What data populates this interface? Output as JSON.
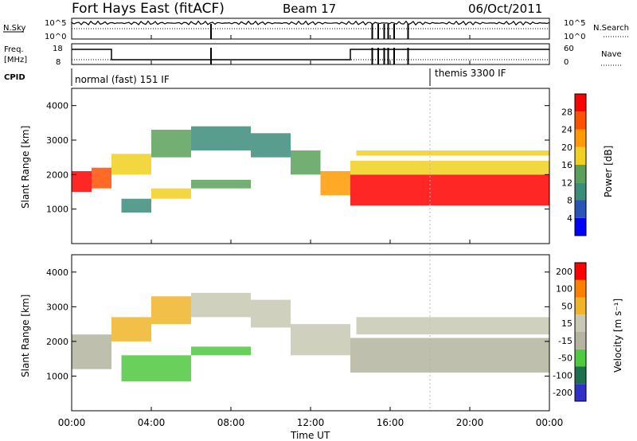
{
  "header": {
    "station": "Fort Hays East (fitACF)",
    "beam": "Beam 17",
    "date": "06/Oct/2011"
  },
  "top_panels": {
    "nsky_label": "N.Sky",
    "nsky_ticks": [
      "10^5",
      "10^0"
    ],
    "nsearch_label": "N.Search",
    "nsearch_ticks": [
      "10^5",
      "10^0"
    ],
    "freq_label": "Freq.",
    "freq_unit": "[MHz]",
    "freq_ticks": [
      "18",
      "8"
    ],
    "nave_label": "Nave",
    "nave_ticks": [
      "60",
      "0"
    ],
    "cpid_label": "CPID",
    "cpid_segments": [
      {
        "label": "normal (fast) 151 IF",
        "start_hour": 0
      },
      {
        "label": "themis 3300 IF",
        "start_hour": 18
      }
    ],
    "freq_steps": [
      {
        "hour_start": 0,
        "hour_end": 2,
        "level": "high"
      },
      {
        "hour_start": 2,
        "hour_end": 14,
        "level": "low"
      },
      {
        "hour_start": 14,
        "hour_end": 24,
        "level": "high"
      }
    ],
    "spike_hours": [
      7,
      15.1,
      15.4,
      15.7,
      15.9,
      16.2,
      16.9
    ]
  },
  "colors": {
    "power": [
      "#0000ff",
      "#2a55b8",
      "#3c8c7a",
      "#5aa05a",
      "#f0d020",
      "#ff9a00",
      "#ff5000",
      "#ff0000"
    ],
    "velocity": [
      "#3030c8",
      "#1e6e50",
      "#50c840",
      "#b4b4a0",
      "#c8c8b4",
      "#f0b428",
      "#ff8000",
      "#ff0000"
    ]
  },
  "chart_data": [
    {
      "type": "heatmap",
      "name_panel": "power",
      "ylabel": "Slant Range [km]",
      "ylim": [
        0,
        4500
      ],
      "yticks": [
        "4000",
        "3000",
        "2000",
        "1000"
      ],
      "xlim_hours": [
        0,
        24
      ],
      "colorbar_label": "Power [dB]",
      "colorbar_ticks": [
        "28",
        "24",
        "20",
        "16",
        "12",
        "8",
        "4"
      ],
      "bands": [
        {
          "hour_start": 0.0,
          "hour_end": 1.0,
          "range_start": 1500,
          "range_end": 2100,
          "level": 7
        },
        {
          "hour_start": 1.0,
          "hour_end": 2.0,
          "range_start": 1600,
          "range_end": 2200,
          "level": 6
        },
        {
          "hour_start": 2.0,
          "hour_end": 4.0,
          "range_start": 2000,
          "range_end": 2600,
          "level": 4
        },
        {
          "hour_start": 4.0,
          "hour_end": 6.0,
          "range_start": 2500,
          "range_end": 3300,
          "level": 3
        },
        {
          "hour_start": 6.0,
          "hour_end": 9.0,
          "range_start": 2700,
          "range_end": 3400,
          "level": 2
        },
        {
          "hour_start": 9.0,
          "hour_end": 11.0,
          "range_start": 2500,
          "range_end": 3200,
          "level": 2
        },
        {
          "hour_start": 11.0,
          "hour_end": 12.5,
          "range_start": 2000,
          "range_end": 2700,
          "level": 3
        },
        {
          "hour_start": 12.5,
          "hour_end": 14.0,
          "range_start": 1400,
          "range_end": 2100,
          "level": 5
        },
        {
          "hour_start": 2.5,
          "hour_end": 4.0,
          "range_start": 900,
          "range_end": 1300,
          "level": 2
        },
        {
          "hour_start": 4.0,
          "hour_end": 6.0,
          "range_start": 1300,
          "range_end": 1600,
          "level": 4
        },
        {
          "hour_start": 6.0,
          "hour_end": 9.0,
          "range_start": 1600,
          "range_end": 1850,
          "level": 3
        },
        {
          "hour_start": 14.0,
          "hour_end": 24.0,
          "range_start": 1100,
          "range_end": 2000,
          "level": 7
        },
        {
          "hour_start": 14.0,
          "hour_end": 24.0,
          "range_start": 2000,
          "range_end": 2400,
          "level": 4
        },
        {
          "hour_start": 14.3,
          "hour_end": 24.0,
          "range_start": 2550,
          "range_end": 2700,
          "level": 4
        }
      ]
    },
    {
      "type": "heatmap",
      "name_panel": "velocity",
      "ylabel": "Slant Range [km]",
      "ylim": [
        0,
        4500
      ],
      "yticks": [
        "4000",
        "3000",
        "2000",
        "1000"
      ],
      "xlim_hours": [
        0,
        24
      ],
      "xticks": [
        "00:00",
        "04:00",
        "08:00",
        "12:00",
        "16:00",
        "20:00",
        "00:00"
      ],
      "xlabel": "Time UT",
      "colorbar_label": "Velocity [m s⁻¹]",
      "colorbar_ticks": [
        "200",
        "100",
        "50",
        "15",
        "-15",
        "-50",
        "-100",
        "-200"
      ],
      "bands": [
        {
          "hour_start": 0.0,
          "hour_end": 2.0,
          "range_start": 1200,
          "range_end": 2200,
          "level": 3
        },
        {
          "hour_start": 2.0,
          "hour_end": 4.0,
          "range_start": 2000,
          "range_end": 2700,
          "level": 5
        },
        {
          "hour_start": 4.0,
          "hour_end": 6.0,
          "range_start": 2500,
          "range_end": 3300,
          "level": 5
        },
        {
          "hour_start": 6.0,
          "hour_end": 9.0,
          "range_start": 2700,
          "range_end": 3400,
          "level": 4
        },
        {
          "hour_start": 9.0,
          "hour_end": 11.0,
          "range_start": 2400,
          "range_end": 3200,
          "level": 4
        },
        {
          "hour_start": 11.0,
          "hour_end": 14.0,
          "range_start": 1600,
          "range_end": 2500,
          "level": 4
        },
        {
          "hour_start": 2.5,
          "hour_end": 6.0,
          "range_start": 850,
          "range_end": 1600,
          "level": 2
        },
        {
          "hour_start": 6.0,
          "hour_end": 9.0,
          "range_start": 1600,
          "range_end": 1850,
          "level": 2
        },
        {
          "hour_start": 14.0,
          "hour_end": 24.0,
          "range_start": 1100,
          "range_end": 2100,
          "level": 3
        },
        {
          "hour_start": 14.3,
          "hour_end": 24.0,
          "range_start": 2200,
          "range_end": 2700,
          "level": 4
        }
      ]
    }
  ]
}
